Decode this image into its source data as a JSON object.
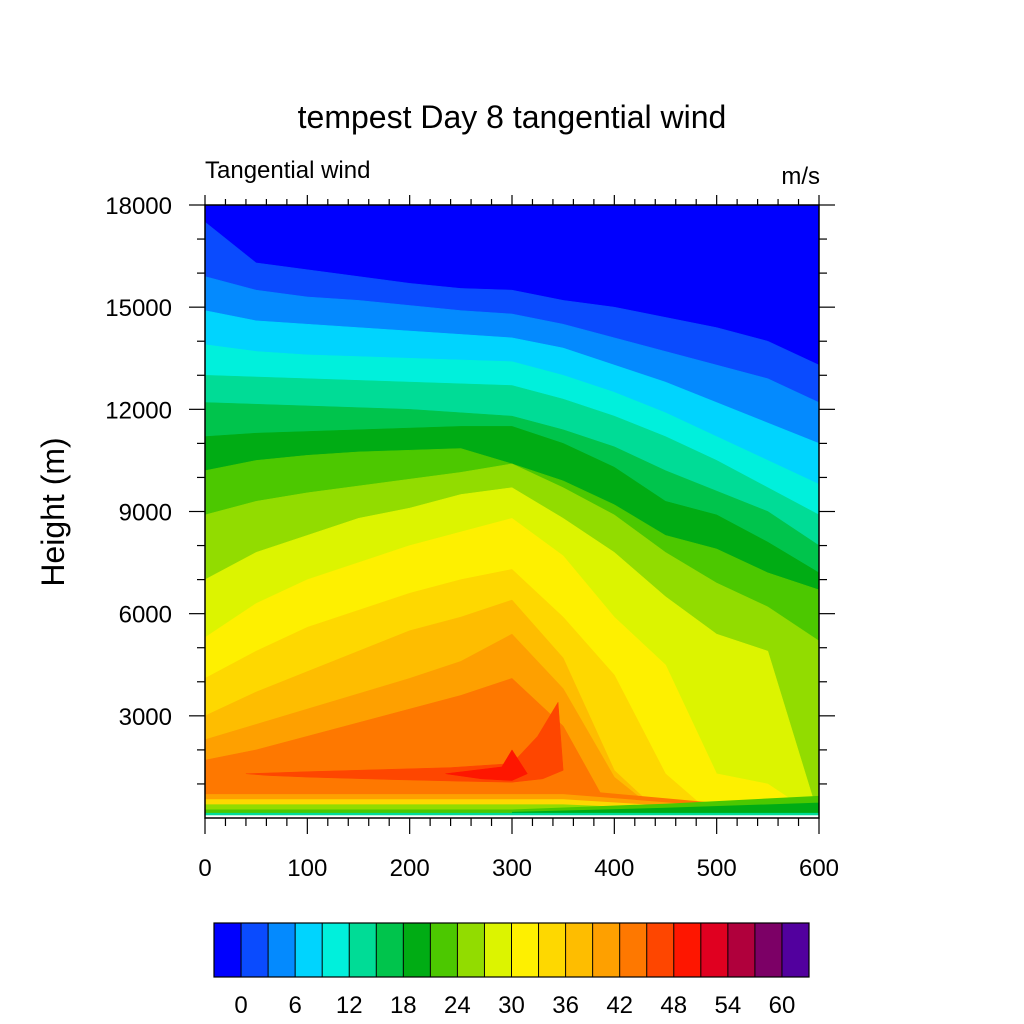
{
  "chart_data": {
    "type": "heatmap",
    "title": "tempest Day 8 tangential wind",
    "left_string": "Tangential wind",
    "right_string": "m/s",
    "xlabel": "",
    "ylabel": "Height (m)",
    "xlim": [
      0,
      600
    ],
    "ylim": [
      0,
      18000
    ],
    "x_ticks": [
      0,
      100,
      200,
      300,
      400,
      500,
      600
    ],
    "y_ticks": [
      3000,
      6000,
      9000,
      12000,
      15000,
      18000
    ],
    "x_tick_labels": [
      "0",
      "100",
      "200",
      "300",
      "400",
      "500",
      "600"
    ],
    "y_tick_labels": [
      "3000",
      "6000",
      "9000",
      "12000",
      "15000",
      "18000"
    ],
    "colorbar_tick_labels": [
      "0",
      "6",
      "12",
      "18",
      "24",
      "30",
      "36",
      "42",
      "48",
      "54",
      "60"
    ],
    "contour_levels": [
      0,
      3,
      6,
      9,
      12,
      15,
      18,
      21,
      24,
      27,
      30,
      33,
      36,
      39,
      42,
      45,
      48,
      51,
      54,
      57,
      60
    ],
    "level_colors": [
      "#0000fe",
      "#0a4bfe",
      "#048afe",
      "#00d4fe",
      "#00f0dc",
      "#00dc96",
      "#00c44c",
      "#00ac14",
      "#4cc800",
      "#92dc00",
      "#dcf400",
      "#fef000",
      "#fed800",
      "#febd00",
      "#fea000",
      "#fe7800",
      "#fe4600",
      "#fe1600",
      "#e00020",
      "#b0003c",
      "#7c0066",
      "#52009e"
    ],
    "grid": false,
    "legend": "bottom",
    "profiles": {
      "x": [
        0,
        50,
        100,
        150,
        200,
        250,
        300,
        350,
        400,
        450,
        500,
        550,
        600
      ],
      "boundary_heights": {
        "3": [
          17500,
          16300,
          16100,
          15900,
          15700,
          15550,
          15500,
          15200,
          15000,
          14700,
          14400,
          14000,
          13300
        ],
        "6": [
          15900,
          15500,
          15300,
          15200,
          15050,
          14900,
          14800,
          14500,
          14100,
          13700,
          13300,
          12900,
          12200
        ],
        "9": [
          14900,
          14600,
          14500,
          14400,
          14300,
          14200,
          14100,
          13800,
          13300,
          12800,
          12200,
          11600,
          11000
        ],
        "12": [
          13900,
          13700,
          13600,
          13550,
          13500,
          13450,
          13400,
          13000,
          12500,
          11900,
          11200,
          10500,
          9800
        ],
        "15": [
          13000,
          12950,
          12900,
          12850,
          12800,
          12750,
          12700,
          12300,
          11800,
          11200,
          10500,
          9700,
          8900
        ],
        "18": [
          12200,
          12150,
          12100,
          12050,
          12000,
          11900,
          11800,
          11400,
          10900,
          10200,
          9600,
          9000,
          8000
        ],
        "21": [
          11200,
          11300,
          11350,
          11400,
          11450,
          11500,
          11500,
          11000,
          10300,
          9300,
          8900,
          8100,
          7200
        ],
        "24": [
          10200,
          10500,
          10650,
          10750,
          10800,
          10850,
          10400,
          9900,
          9200,
          8300,
          7900,
          7200,
          6700
        ],
        "27": [
          8900,
          9300,
          9550,
          9750,
          9950,
          10150,
          10400,
          9700,
          8900,
          7800,
          6900,
          6200,
          5200
        ],
        "30": [
          7000,
          7800,
          8300,
          8800,
          9100,
          9500,
          9700,
          8800,
          7800,
          6500,
          5400,
          4900,
          0
        ],
        "33": [
          5300,
          6300,
          7000,
          7500,
          8000,
          8400,
          8800,
          7700,
          5900,
          4500,
          1300,
          1000,
          0
        ],
        "36": [
          4100,
          4900,
          5600,
          6100,
          6600,
          7000,
          7300,
          5900,
          4200,
          1300,
          0,
          0,
          0
        ],
        "39": [
          3000,
          3700,
          4300,
          4900,
          5500,
          5900,
          6400,
          4700,
          1400,
          0,
          0,
          0,
          0
        ],
        "42": [
          2300,
          2750,
          3200,
          3650,
          4100,
          4600,
          5400,
          3800,
          1200,
          0,
          0,
          0,
          0
        ],
        "45": [
          1700,
          2000,
          2400,
          2800,
          3200,
          3600,
          4100,
          2700,
          0,
          0,
          0,
          0,
          0
        ]
      },
      "near_surface_band_heights_m": {
        "fill": 850,
        "orange": 700,
        "gold": 550,
        "yellow": 400,
        "green": 250
      }
    },
    "core_48": {
      "x": [
        40,
        100,
        170,
        240,
        300,
        325,
        345,
        350,
        330,
        300,
        250,
        180,
        100,
        60
      ],
      "y": [
        1300,
        1360,
        1420,
        1480,
        1600,
        2400,
        3400,
        1400,
        1150,
        1050,
        1080,
        1130,
        1200,
        1250
      ]
    },
    "core_51": {
      "x": [
        235,
        290,
        300,
        315,
        300,
        270
      ],
      "y": [
        1300,
        1500,
        2000,
        1300,
        1100,
        1150
      ]
    }
  }
}
